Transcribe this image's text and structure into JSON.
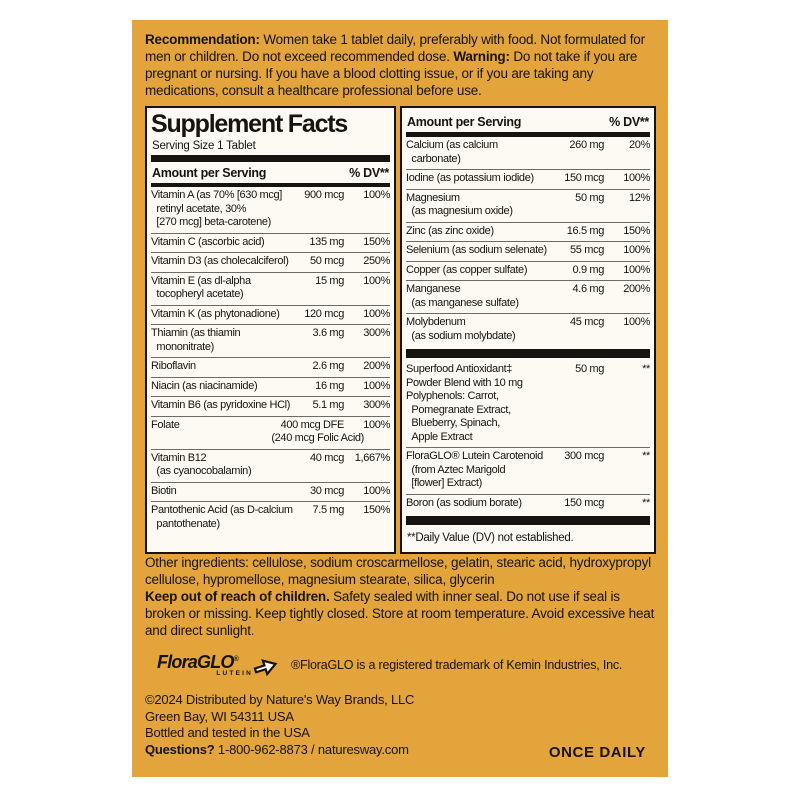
{
  "colors": {
    "gold": "#E3A43C",
    "panel_bg": "#FCFAF3",
    "ink": "#171310"
  },
  "recommendation": {
    "label": "Recommendation:",
    "text": " Women take 1 tablet daily, preferably with food. Not formulated for men or children. Do not exceed recommended dose. ",
    "warning_label": "Warning:",
    "warning_text": " Do not take if you are pregnant or nursing. If you have a blood clotting issue, or if you are taking any medications, consult a healthcare professional before use."
  },
  "left_panel": {
    "title": "Supplement Facts",
    "serving": "Serving Size 1 Tablet",
    "header": {
      "amount": "Amount per Serving",
      "dv": "% DV**"
    },
    "rows": [
      {
        "name": "Vitamin A (as 70% [630 mcg]\n  retinyl acetate, 30%\n  [270 mcg] beta-carotene)",
        "amount": "900 mcg",
        "dv": "100%"
      },
      {
        "name": "Vitamin C (ascorbic acid)",
        "amount": "135 mg",
        "dv": "150%"
      },
      {
        "name": "Vitamin D3 (as cholecalciferol)",
        "amount": "50 mcg",
        "dv": "250%"
      },
      {
        "name": "Vitamin E (as dl-alpha\n  tocopheryl acetate)",
        "amount": "15 mg",
        "dv": "100%"
      },
      {
        "name": "Vitamin K (as phytonadione)",
        "amount": "120 mcg",
        "dv": "100%"
      },
      {
        "name": "Thiamin (as thiamin\n  mononitrate)",
        "amount": "3.6 mg",
        "dv": "300%"
      },
      {
        "name": "Riboflavin",
        "amount": "2.6 mg",
        "dv": "200%"
      },
      {
        "name": "Niacin (as niacinamide)",
        "amount": "16 mg",
        "dv": "100%"
      },
      {
        "name": "Vitamin B6 (as pyridoxine HCl)",
        "amount": "5.1 mg",
        "dv": "300%"
      },
      {
        "name": "Folate",
        "amount": "400 mcg DFE",
        "dv": "100%",
        "sub": "(240 mcg Folic Acid)"
      },
      {
        "name": "Vitamin B12\n  (as cyanocobalamin)",
        "amount": "40 mcg",
        "dv": "1,667%"
      },
      {
        "name": "Biotin",
        "amount": "30 mcg",
        "dv": "100%"
      },
      {
        "name": "Pantothenic Acid (as D-calcium\n  pantothenate)",
        "amount": "7.5 mg",
        "dv": "150%"
      }
    ]
  },
  "right_panel": {
    "header": {
      "amount": "Amount per Serving",
      "dv": "% DV**"
    },
    "rows": [
      {
        "name": "Calcium (as calcium\n  carbonate)",
        "amount": "260 mg",
        "dv": "20%"
      },
      {
        "name": "Iodine (as potassium iodide)",
        "amount": "150 mcg",
        "dv": "100%"
      },
      {
        "name": "Magnesium\n  (as magnesium oxide)",
        "amount": "50 mg",
        "dv": "12%"
      },
      {
        "name": "Zinc (as zinc oxide)",
        "amount": "16.5 mg",
        "dv": "150%"
      },
      {
        "name": "Selenium (as sodium selenate)",
        "amount": "55 mcg",
        "dv": "100%"
      },
      {
        "name": "Copper (as copper sulfate)",
        "amount": "0.9 mg",
        "dv": "100%"
      },
      {
        "name": "Manganese\n  (as manganese sulfate)",
        "amount": "4.6 mg",
        "dv": "200%"
      },
      {
        "name": "Molybdenum\n  (as sodium molybdate)",
        "amount": "45 mcg",
        "dv": "100%",
        "bar_after": true
      },
      {
        "name": "Superfood Antioxidant‡\nPowder Blend with 10 mg\nPolyphenols: Carrot,\n  Pomegranate Extract,\n  Blueberry, Spinach,\n  Apple Extract",
        "amount": "50 mg",
        "dv": "**"
      },
      {
        "name": "FloraGLO® Lutein Carotenoid\n  (from Aztec Marigold\n  [flower] Extract)",
        "amount": "300 mcg",
        "dv": "**"
      },
      {
        "name": "Boron (as sodium borate)",
        "amount": "150 mcg",
        "dv": "**",
        "bar_after": true
      }
    ],
    "footnote": "**Daily Value (DV) not established."
  },
  "other_ingredients": "Other ingredients: cellulose, sodium croscarmellose, gelatin, stearic acid, hydroxypropyl cellulose, hypromellose, magnesium stearate, silica, glycerin",
  "keep_out": {
    "label": "Keep out of reach of children.",
    "text": " Safety sealed with inner seal. Do not use if seal is broken or missing. Keep tightly closed. Store at room temperature. Avoid excessive heat and direct sunlight."
  },
  "floraglo": {
    "flora": "Flora",
    "glo": "GLO",
    "reg": "®",
    "sub": "LUTEIN",
    "trademark": "®FloraGLO is a registered trademark of Kemin Industries, Inc."
  },
  "distribution": {
    "line1": "©2024 Distributed by Nature's Way Brands, LLC",
    "line2": "Green Bay, WI 54311 USA",
    "line3": "Bottled and tested in the USA",
    "q_label": "Questions?",
    "q_text": " 1-800-962-8873 / naturesway.com"
  },
  "once_daily": "ONCE DAILY"
}
